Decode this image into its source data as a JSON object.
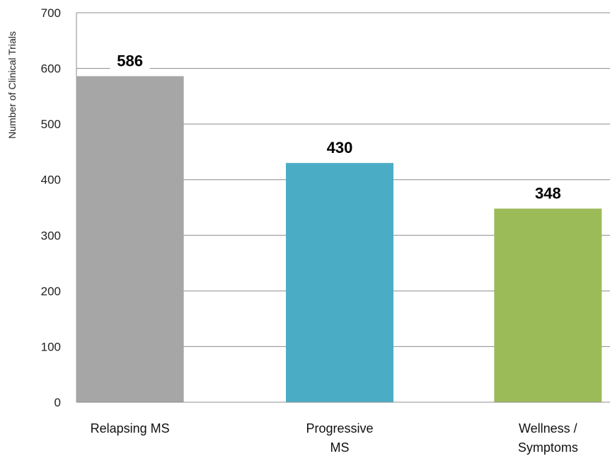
{
  "chart_data": {
    "type": "bar",
    "title": "",
    "xlabel": "",
    "ylabel": "Number of Clinical Trials",
    "ylim": [
      0,
      700
    ],
    "yticks": [
      0,
      100,
      200,
      300,
      400,
      500,
      600,
      700
    ],
    "grid": true,
    "categories": [
      {
        "lines": [
          "Relapsing MS"
        ]
      },
      {
        "lines": [
          "Progressive",
          "MS"
        ]
      },
      {
        "lines": [
          "Wellness /",
          "Symptoms"
        ]
      }
    ],
    "values": [
      586,
      430,
      348
    ],
    "data_labels": [
      "586",
      "430",
      "348"
    ],
    "colors": [
      "#a6a6a6",
      "#4bacc6",
      "#9bbb59"
    ]
  }
}
